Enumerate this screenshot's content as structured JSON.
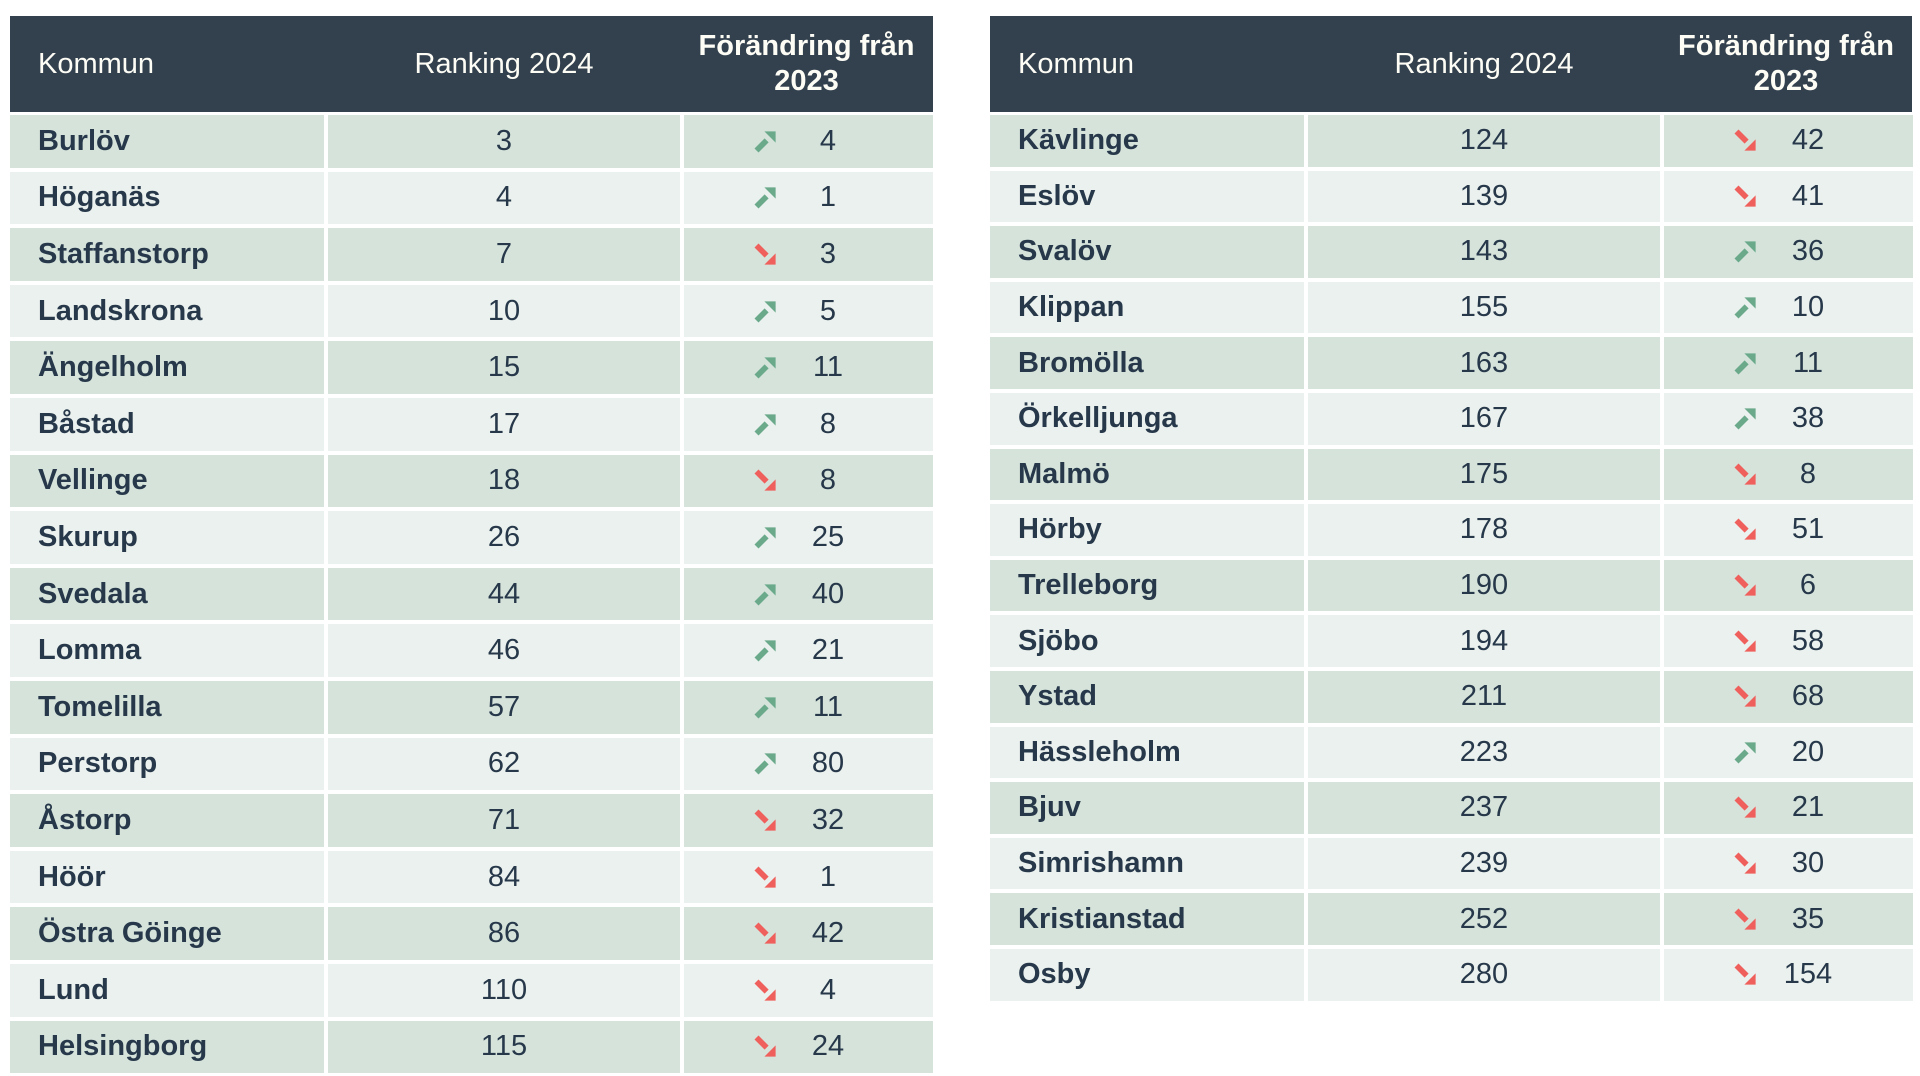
{
  "labels": {
    "kommun": "Kommun",
    "ranking": "Ranking 2024",
    "change": "Förändring från 2023"
  },
  "colors": {
    "header_bg": "#33404e",
    "header_text": "#fdfdf6",
    "row_odd": "#d6e3db",
    "row_even": "#ebf1ee",
    "text": "#26384a",
    "up_green": "#6aaa8b",
    "down_red": "#ef605c"
  },
  "tables": [
    {
      "id": "left",
      "rows": [
        {
          "kommun": "Burlöv",
          "ranking": "3",
          "change": "4",
          "direction": "up"
        },
        {
          "kommun": "Höganäs",
          "ranking": "4",
          "change": "1",
          "direction": "up"
        },
        {
          "kommun": "Staffanstorp",
          "ranking": "7",
          "change": "3",
          "direction": "down"
        },
        {
          "kommun": "Landskrona",
          "ranking": "10",
          "change": "5",
          "direction": "up"
        },
        {
          "kommun": "Ängelholm",
          "ranking": "15",
          "change": "11",
          "direction": "up"
        },
        {
          "kommun": "Båstad",
          "ranking": "17",
          "change": "8",
          "direction": "up"
        },
        {
          "kommun": "Vellinge",
          "ranking": "18",
          "change": "8",
          "direction": "down"
        },
        {
          "kommun": "Skurup",
          "ranking": "26",
          "change": "25",
          "direction": "up"
        },
        {
          "kommun": "Svedala",
          "ranking": "44",
          "change": "40",
          "direction": "up"
        },
        {
          "kommun": "Lomma",
          "ranking": "46",
          "change": "21",
          "direction": "up"
        },
        {
          "kommun": "Tomelilla",
          "ranking": "57",
          "change": "11",
          "direction": "up"
        },
        {
          "kommun": "Perstorp",
          "ranking": "62",
          "change": "80",
          "direction": "up"
        },
        {
          "kommun": "Åstorp",
          "ranking": "71",
          "change": "32",
          "direction": "down"
        },
        {
          "kommun": "Höör",
          "ranking": "84",
          "change": "1",
          "direction": "down"
        },
        {
          "kommun": "Östra Göinge",
          "ranking": "86",
          "change": "42",
          "direction": "down"
        },
        {
          "kommun": "Lund",
          "ranking": "110",
          "change": "4",
          "direction": "down"
        },
        {
          "kommun": "Helsingborg",
          "ranking": "115",
          "change": "24",
          "direction": "down"
        }
      ]
    },
    {
      "id": "right",
      "rows": [
        {
          "kommun": "Kävlinge",
          "ranking": "124",
          "change": "42",
          "direction": "down"
        },
        {
          "kommun": "Eslöv",
          "ranking": "139",
          "change": "41",
          "direction": "down"
        },
        {
          "kommun": "Svalöv",
          "ranking": "143",
          "change": "36",
          "direction": "up"
        },
        {
          "kommun": "Klippan",
          "ranking": "155",
          "change": "10",
          "direction": "up"
        },
        {
          "kommun": "Bromölla",
          "ranking": "163",
          "change": "11",
          "direction": "up"
        },
        {
          "kommun": "Örkelljunga",
          "ranking": "167",
          "change": "38",
          "direction": "up"
        },
        {
          "kommun": "Malmö",
          "ranking": "175",
          "change": "8",
          "direction": "down"
        },
        {
          "kommun": "Hörby",
          "ranking": "178",
          "change": "51",
          "direction": "down"
        },
        {
          "kommun": "Trelleborg",
          "ranking": "190",
          "change": "6",
          "direction": "down"
        },
        {
          "kommun": "Sjöbo",
          "ranking": "194",
          "change": "58",
          "direction": "down"
        },
        {
          "kommun": "Ystad",
          "ranking": "211",
          "change": "68",
          "direction": "down"
        },
        {
          "kommun": "Hässleholm",
          "ranking": "223",
          "change": "20",
          "direction": "up"
        },
        {
          "kommun": "Bjuv",
          "ranking": "237",
          "change": "21",
          "direction": "down"
        },
        {
          "kommun": "Simrishamn",
          "ranking": "239",
          "change": "30",
          "direction": "down"
        },
        {
          "kommun": "Kristianstad",
          "ranking": "252",
          "change": "35",
          "direction": "down"
        },
        {
          "kommun": "Osby",
          "ranking": "280",
          "change": "154",
          "direction": "down"
        }
      ]
    }
  ],
  "chart_data": [
    {
      "type": "table",
      "columns": [
        "Kommun",
        "Ranking 2024",
        "Förändring från 2023"
      ],
      "rows": [
        [
          "Burlöv",
          3,
          4
        ],
        [
          "Höganäs",
          4,
          1
        ],
        [
          "Staffanstorp",
          7,
          -3
        ],
        [
          "Landskrona",
          10,
          5
        ],
        [
          "Ängelholm",
          15,
          11
        ],
        [
          "Båstad",
          17,
          8
        ],
        [
          "Vellinge",
          18,
          -8
        ],
        [
          "Skurup",
          26,
          25
        ],
        [
          "Svedala",
          44,
          40
        ],
        [
          "Lomma",
          46,
          21
        ],
        [
          "Tomelilla",
          57,
          11
        ],
        [
          "Perstorp",
          62,
          80
        ],
        [
          "Åstorp",
          71,
          -32
        ],
        [
          "Höör",
          84,
          -1
        ],
        [
          "Östra Göinge",
          86,
          -42
        ],
        [
          "Lund",
          110,
          -4
        ],
        [
          "Helsingborg",
          115,
          -24
        ]
      ]
    },
    {
      "type": "table",
      "columns": [
        "Kommun",
        "Ranking 2024",
        "Förändring från 2023"
      ],
      "rows": [
        [
          "Kävlinge",
          124,
          -42
        ],
        [
          "Eslöv",
          139,
          -41
        ],
        [
          "Svalöv",
          143,
          36
        ],
        [
          "Klippan",
          155,
          10
        ],
        [
          "Bromölla",
          163,
          11
        ],
        [
          "Örkelljunga",
          167,
          38
        ],
        [
          "Malmö",
          175,
          -8
        ],
        [
          "Hörby",
          178,
          -51
        ],
        [
          "Trelleborg",
          190,
          -6
        ],
        [
          "Sjöbo",
          194,
          -58
        ],
        [
          "Ystad",
          211,
          -68
        ],
        [
          "Hässleholm",
          223,
          20
        ],
        [
          "Bjuv",
          237,
          -21
        ],
        [
          "Simrishamn",
          239,
          -30
        ],
        [
          "Kristianstad",
          252,
          -35
        ],
        [
          "Osby",
          280,
          -154
        ]
      ]
    }
  ]
}
